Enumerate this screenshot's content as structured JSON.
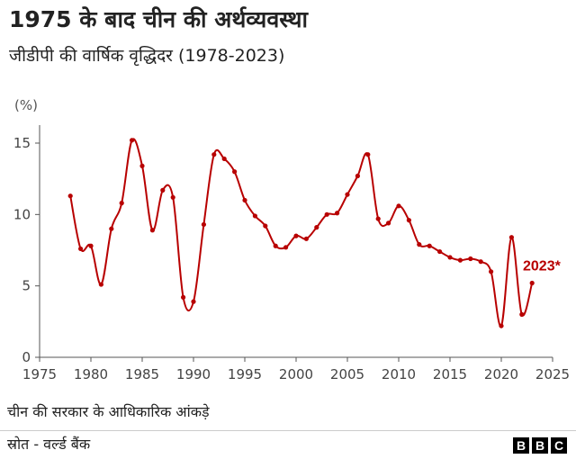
{
  "header": {
    "title": "1975 के बाद चीन की अर्थव्यवस्था",
    "subtitle": "जीडीपी की वार्षिक वृद्धिदर  (1978-2023)"
  },
  "footer": {
    "note": "चीन की सरकार के आधिकारिक आंकड़े",
    "source": "स्रोत - वर्ल्ड बैंक",
    "logo": [
      "B",
      "B",
      "C"
    ]
  },
  "colors": {
    "series": "#b80000",
    "axis": "#555555",
    "grid": "#dddddd"
  },
  "chart_data": {
    "type": "line",
    "unit_label": "(%)",
    "xlim": [
      1975,
      2025
    ],
    "ylim": [
      0,
      15
    ],
    "x_ticks": [
      1975,
      1980,
      1985,
      1990,
      1995,
      2000,
      2005,
      2010,
      2015,
      2020,
      2025
    ],
    "y_ticks": [
      0,
      5,
      10,
      15
    ],
    "grid": false,
    "annotation": {
      "text": "2023*",
      "year": 2023
    },
    "x": [
      1978,
      1979,
      1980,
      1981,
      1982,
      1983,
      1984,
      1985,
      1986,
      1987,
      1988,
      1989,
      1990,
      1991,
      1992,
      1993,
      1994,
      1995,
      1996,
      1997,
      1998,
      1999,
      2000,
      2001,
      2002,
      2003,
      2004,
      2005,
      2006,
      2007,
      2008,
      2009,
      2010,
      2011,
      2012,
      2013,
      2014,
      2015,
      2016,
      2017,
      2018,
      2019,
      2020,
      2021,
      2022,
      2023
    ],
    "values": [
      11.3,
      7.6,
      7.8,
      5.1,
      9.0,
      10.8,
      15.2,
      13.4,
      8.9,
      11.7,
      11.2,
      4.2,
      3.9,
      9.3,
      14.2,
      13.9,
      13.0,
      11.0,
      9.9,
      9.2,
      7.8,
      7.7,
      8.5,
      8.3,
      9.1,
      10.0,
      10.1,
      11.4,
      12.7,
      14.2,
      9.7,
      9.4,
      10.6,
      9.6,
      7.9,
      7.8,
      7.4,
      7.0,
      6.8,
      6.9,
      6.7,
      6.0,
      2.2,
      8.4,
      3.0,
      5.2
    ]
  }
}
